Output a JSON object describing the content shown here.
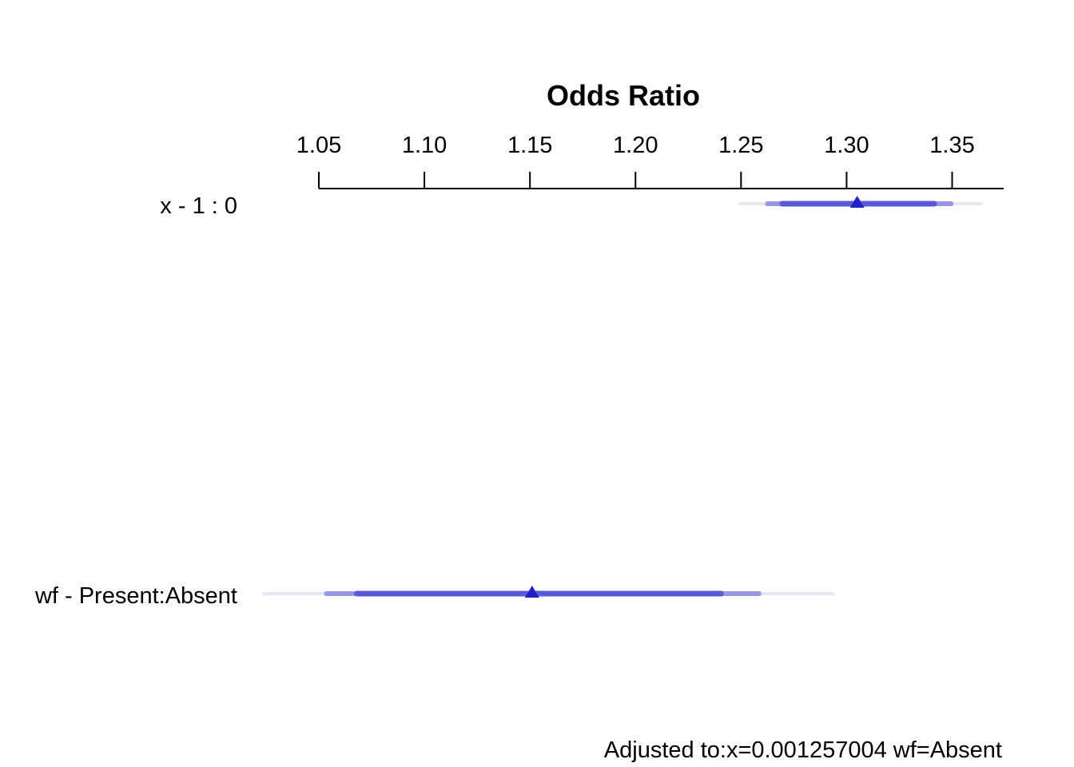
{
  "chart_data": {
    "type": "interval",
    "title": "Odds Ratio",
    "xlim": [
      1.05,
      1.375
    ],
    "ticks": [
      "1.05",
      "1.10",
      "1.15",
      "1.20",
      "1.25",
      "1.30",
      "1.35"
    ],
    "tick_values": [
      1.05,
      1.1,
      1.15,
      1.2,
      1.25,
      1.3,
      1.35
    ],
    "rows": [
      {
        "label": "x - 1 : 0",
        "estimate": 1.305,
        "intervals": [
          {
            "level": "outer",
            "low": 1.2495,
            "high": 1.3635
          },
          {
            "level": "middle",
            "low": 1.2625,
            "high": 1.3495
          },
          {
            "level": "inner",
            "low": 1.2695,
            "high": 1.3415
          }
        ]
      },
      {
        "label": "wf - Present:Absent",
        "estimate": 1.151,
        "intervals": [
          {
            "level": "outer",
            "low": 1.024,
            "high": 1.2935
          },
          {
            "level": "middle",
            "low": 1.0535,
            "high": 1.2585
          },
          {
            "level": "inner",
            "low": 1.068,
            "high": 1.2405
          }
        ]
      }
    ],
    "colors": {
      "outer": "#e6e6f7",
      "middle": "#9898e2",
      "inner": "#5a5ad8",
      "marker": "#2020c8",
      "axis": "#000000"
    }
  },
  "footnote": "Adjusted to:x=0.001257004 wf=Absent"
}
